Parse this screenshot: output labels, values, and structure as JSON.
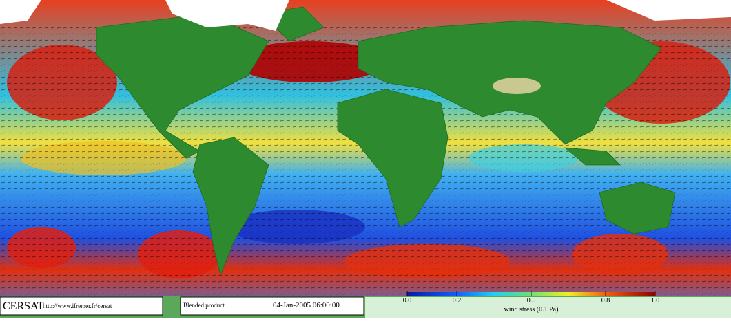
{
  "footer": {
    "logo": "CERSAT",
    "url": "http://www.ifremer.fr/cersat",
    "product": "Blended product",
    "timestamp": "04-Jan-2005 06:00:00"
  },
  "colorbar": {
    "label": "wind stress (0.1 Pa)",
    "range": [
      0,
      1
    ],
    "ticks": [
      {
        "value": 0,
        "label": "0.0"
      },
      0.2,
      0.5,
      0.8,
      {
        "value": 1,
        "label": "1.0"
      }
    ]
  }
}
